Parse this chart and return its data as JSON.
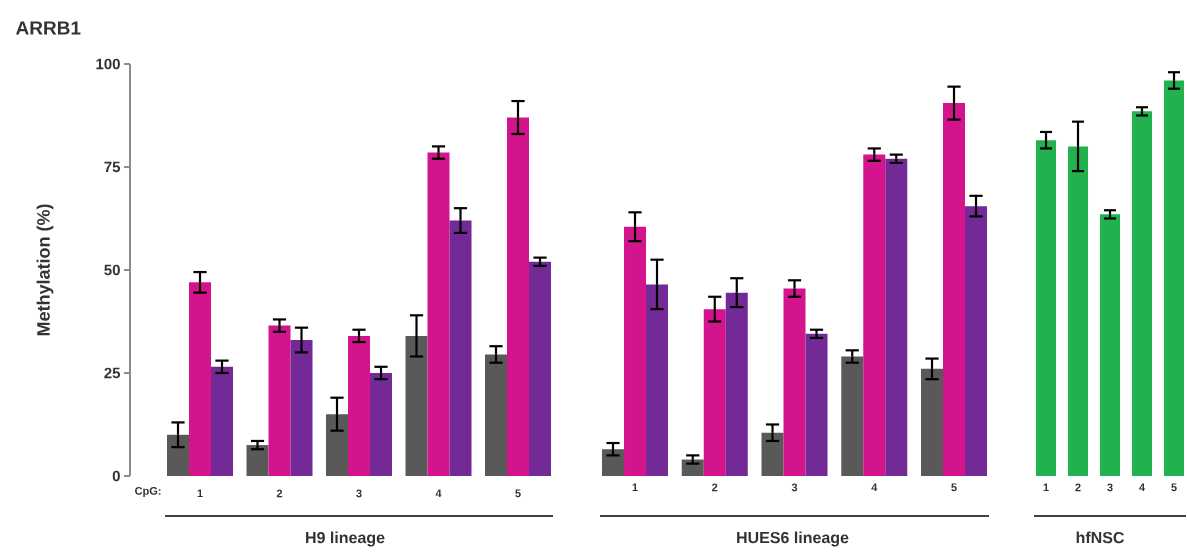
{
  "chart_data": [
    {
      "type": "bar",
      "title": "ARRB1",
      "ylabel": "Methylation (%)",
      "xlabel": "H9 lineage",
      "annotations": [
        "CpG:"
      ],
      "categories": [
        "1",
        "2",
        "3",
        "4",
        "5"
      ],
      "ylim": [
        0,
        100
      ],
      "yticks": [
        0,
        25,
        50,
        75,
        100
      ],
      "series": [
        {
          "color": "#595959",
          "values": [
            10,
            7.5,
            15,
            34,
            29.5
          ],
          "errors": [
            3,
            1,
            4,
            5,
            2
          ]
        },
        {
          "color": "#d4148c",
          "values": [
            47,
            36.5,
            34,
            78.5,
            87
          ],
          "errors": [
            2.5,
            1.5,
            1.5,
            1.5,
            4
          ]
        },
        {
          "color": "#732996",
          "values": [
            26.5,
            33,
            25,
            62,
            52
          ],
          "errors": [
            1.5,
            3,
            1.5,
            3,
            1
          ]
        }
      ]
    },
    {
      "type": "bar",
      "xlabel": "HUES6 lineage",
      "categories": [
        "1",
        "2",
        "3",
        "4",
        "5"
      ],
      "ylim": [
        0,
        100
      ],
      "tick_labels": "x",
      "series": [
        {
          "color": "#595959",
          "values": [
            6.5,
            4,
            10.5,
            29,
            26
          ],
          "errors": [
            1.5,
            1,
            2,
            1.5,
            2.5
          ]
        },
        {
          "color": "#d4148c",
          "values": [
            60.5,
            40.5,
            45.5,
            78,
            90.5
          ],
          "errors": [
            3.5,
            3,
            2,
            1.5,
            4
          ]
        },
        {
          "color": "#732996",
          "values": [
            46.5,
            44.5,
            34.5,
            77,
            65.5
          ],
          "errors": [
            6,
            3.5,
            1,
            1,
            2.5
          ]
        }
      ]
    },
    {
      "type": "bar",
      "xlabel": "hfNSC",
      "categories": [
        "1",
        "2",
        "3",
        "4",
        "5"
      ],
      "ylim": [
        0,
        100
      ],
      "tick_labels": "x",
      "series": [
        {
          "color": "#21b24f",
          "values": [
            81.5,
            80,
            63.5,
            88.5,
            96
          ],
          "errors": [
            2,
            6,
            1,
            1,
            2
          ]
        }
      ]
    }
  ]
}
